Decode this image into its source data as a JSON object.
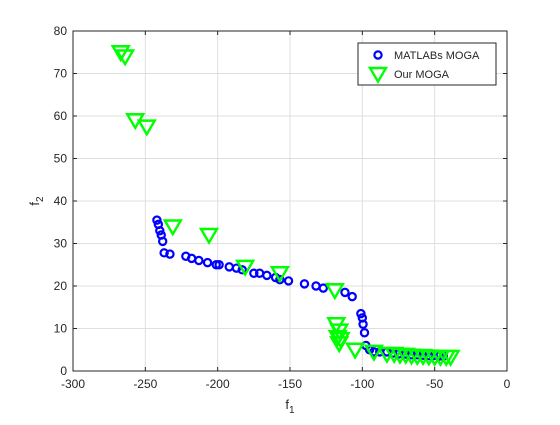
{
  "chart_data": {
    "type": "scatter",
    "xlabel": "f",
    "xlabel_sub": "1",
    "ylabel": "f",
    "ylabel_sub": "2",
    "xlim": [
      -300,
      0
    ],
    "ylim": [
      0,
      80
    ],
    "xticks": [
      -300,
      -250,
      -200,
      -150,
      -100,
      -50,
      0
    ],
    "yticks": [
      0,
      10,
      20,
      30,
      40,
      50,
      60,
      70,
      80
    ],
    "xtick_labels": [
      "-300",
      "-250",
      "-200",
      "-150",
      "-100",
      "-50",
      "0"
    ],
    "ytick_labels": [
      "0",
      "10",
      "20",
      "30",
      "40",
      "50",
      "60",
      "70",
      "80"
    ],
    "grid": true,
    "legend_position": "top-right",
    "series": [
      {
        "name": "MATLABs MOGA",
        "marker": "circle",
        "color": "#0000ff",
        "points": [
          [
            -242,
            35.5
          ],
          [
            -241,
            34.5
          ],
          [
            -240,
            33
          ],
          [
            -239,
            32
          ],
          [
            -238,
            30.5
          ],
          [
            -237,
            27.8
          ],
          [
            -233,
            27.5
          ],
          [
            -222,
            27
          ],
          [
            -218,
            26.5
          ],
          [
            -213,
            26
          ],
          [
            -207,
            25.5
          ],
          [
            -201,
            25
          ],
          [
            -199,
            25
          ],
          [
            -192,
            24.5
          ],
          [
            -187,
            24.2
          ],
          [
            -183,
            23.8
          ],
          [
            -175,
            23
          ],
          [
            -171,
            23
          ],
          [
            -166,
            22.5
          ],
          [
            -160,
            22
          ],
          [
            -157,
            21.5
          ],
          [
            -151,
            21.2
          ],
          [
            -140,
            20.5
          ],
          [
            -132,
            20
          ],
          [
            -127,
            19.5
          ],
          [
            -112,
            18.5
          ],
          [
            -107,
            17.5
          ],
          [
            -101,
            13.5
          ],
          [
            -100,
            12.5
          ],
          [
            -99.5,
            11
          ],
          [
            -98.5,
            9
          ],
          [
            -97.5,
            6
          ],
          [
            -95,
            5
          ],
          [
            -92,
            4.5
          ],
          [
            -88,
            4.5
          ],
          [
            -83,
            4.5
          ],
          [
            -79,
            4.2
          ],
          [
            -75,
            4
          ],
          [
            -70,
            4
          ],
          [
            -66,
            3.8
          ],
          [
            -62,
            3.8
          ],
          [
            -58,
            3.7
          ],
          [
            -54,
            3.6
          ],
          [
            -51,
            3.6
          ],
          [
            -47,
            3.5
          ],
          [
            -44,
            3.5
          ]
        ]
      },
      {
        "name": "Our MOGA",
        "marker": "triangle-down",
        "color": "#00ff00",
        "points": [
          [
            -267,
            75
          ],
          [
            -264,
            74
          ],
          [
            -257,
            59
          ],
          [
            -249,
            57.5
          ],
          [
            -231,
            34
          ],
          [
            -206,
            32
          ],
          [
            -181,
            24.5
          ],
          [
            -157,
            23
          ],
          [
            -119,
            19
          ],
          [
            -118,
            11
          ],
          [
            -117,
            8
          ],
          [
            -116,
            9.5
          ],
          [
            -116,
            6.5
          ],
          [
            -115,
            7.5
          ],
          [
            -105,
            5
          ],
          [
            -92,
            4.5
          ],
          [
            -83,
            4
          ],
          [
            -78,
            4
          ],
          [
            -74,
            3.8
          ],
          [
            -70,
            3.8
          ],
          [
            -66,
            3.6
          ],
          [
            -62,
            3.5
          ],
          [
            -58,
            3.5
          ],
          [
            -54,
            3.4
          ],
          [
            -50,
            3.3
          ],
          [
            -46,
            3.3
          ],
          [
            -42,
            3.3
          ],
          [
            -39,
            3.3
          ]
        ]
      }
    ]
  }
}
